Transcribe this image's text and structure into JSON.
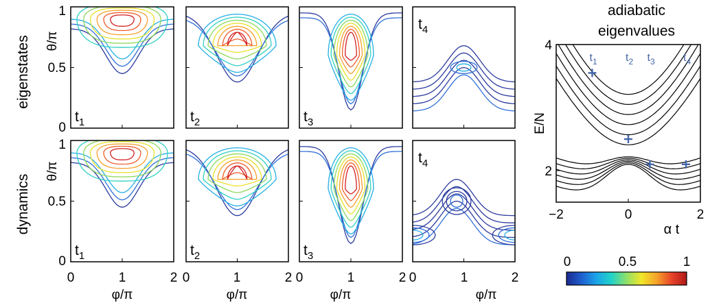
{
  "row_labels": [
    "eigenstates",
    "dynamics"
  ],
  "theta_label": "θ/π",
  "phi_label": "φ/π",
  "theta_ticks": [
    "1",
    "0.5",
    "0"
  ],
  "phi_ticks": [
    "0",
    "1",
    "2"
  ],
  "panel_tags": [
    {
      "base": "t",
      "sub": "1"
    },
    {
      "base": "t",
      "sub": "2"
    },
    {
      "base": "t",
      "sub": "3"
    },
    {
      "base": "t",
      "sub": "4"
    }
  ],
  "colorbar": {
    "ticks": [
      "0",
      "0.5",
      "1"
    ],
    "colormap": "jet",
    "stops": [
      "#1b2a8f",
      "#1f5fd0",
      "#1aa5e8",
      "#22d2c8",
      "#8fe06a",
      "#f2e629",
      "#f5a32a",
      "#e8442a",
      "#b01818"
    ]
  },
  "contour_colors": [
    "#2a3a9e",
    "#2f6fd8",
    "#23aee5",
    "#2ed0c2",
    "#8bd85a",
    "#e8e02a",
    "#f6a02a",
    "#ef5a28",
    "#d32020"
  ],
  "chart_data": [
    {
      "type": "contour",
      "title": "",
      "row": "eigenstates",
      "panels": [
        {
          "tag": "t1",
          "peak": {
            "phi": 1.0,
            "theta": 0.91
          }
        },
        {
          "tag": "t2",
          "peak": {
            "phi": 1.0,
            "theta": 0.86
          }
        },
        {
          "tag": "t3",
          "peak": {
            "phi": 1.0,
            "theta": 0.78
          }
        },
        {
          "tag": "t4",
          "peak": {
            "phi": 1.0,
            "theta": 0.5
          }
        }
      ],
      "xlabel": "φ/π",
      "ylabel": "θ/π",
      "xlim": [
        0,
        2
      ],
      "ylim": [
        0,
        1
      ]
    },
    {
      "type": "contour",
      "title": "",
      "row": "dynamics",
      "panels": [
        {
          "tag": "t1",
          "peak": {
            "phi": 1.0,
            "theta": 0.91
          }
        },
        {
          "tag": "t2",
          "peak": {
            "phi": 1.0,
            "theta": 0.86
          }
        },
        {
          "tag": "t3",
          "peak": {
            "phi": 1.0,
            "theta": 0.78
          }
        },
        {
          "tag": "t4",
          "peak": {
            "phi": 0.85,
            "theta": 0.47
          }
        }
      ],
      "xlabel": "φ/π",
      "ylabel": "θ/π",
      "xlim": [
        0,
        2
      ],
      "ylim": [
        0,
        1
      ]
    },
    {
      "type": "line",
      "title": "adiabatic eigenvalues",
      "xlabel": "α t",
      "ylabel": "E/N",
      "xlim": [
        -2,
        2
      ],
      "ylim": [
        1.5,
        4
      ],
      "xticks": [
        "−2",
        "0",
        "2"
      ],
      "yticks": [
        "2",
        "4"
      ],
      "series_count": 12,
      "markers": [
        {
          "label_base": "t",
          "label_sub": "1",
          "x": -1.0,
          "y": 3.55
        },
        {
          "label_base": "t",
          "label_sub": "2",
          "x": 0.0,
          "y": 2.5
        },
        {
          "label_base": "t",
          "label_sub": "3",
          "x": 0.6,
          "y": 2.1
        },
        {
          "label_base": "t",
          "label_sub": "4",
          "x": 1.6,
          "y": 2.1
        }
      ],
      "marker_color": "#4466aa",
      "line_color": "#000000"
    }
  ]
}
